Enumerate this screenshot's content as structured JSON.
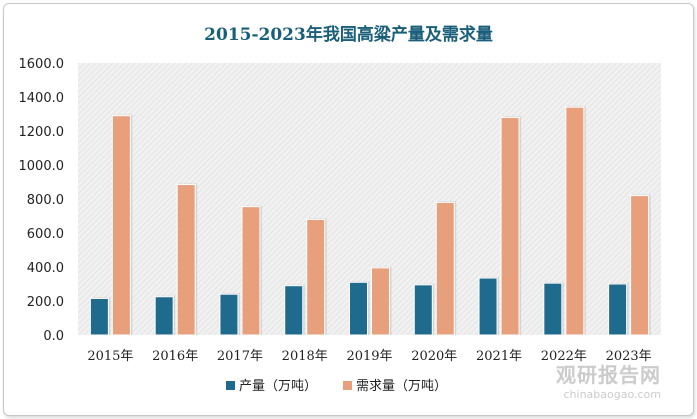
{
  "chart_data": {
    "type": "bar",
    "title": "2015-2023年我国高粱产量及需求量",
    "categories": [
      "2015年",
      "2016年",
      "2017年",
      "2018年",
      "2019年",
      "2020年",
      "2021年",
      "2022年",
      "2023年"
    ],
    "series": [
      {
        "name": "产量（万吨）",
        "color": "#1f6b8e",
        "values": [
          215,
          225,
          240,
          290,
          310,
          295,
          335,
          305,
          300
        ]
      },
      {
        "name": "需求量（万吨）",
        "color": "#e8a07c",
        "values": [
          1290,
          885,
          755,
          680,
          395,
          780,
          1280,
          1340,
          820
        ]
      }
    ],
    "yticks": [
      "0.0",
      "200.0",
      "400.0",
      "600.0",
      "800.0",
      "1000.0",
      "1200.0",
      "1400.0",
      "1600.0"
    ],
    "ylim": [
      0,
      1600
    ],
    "legend_position": "bottom",
    "grid": false
  },
  "watermark": {
    "main": "观研报告网",
    "sub": "chinabaogao.com"
  }
}
